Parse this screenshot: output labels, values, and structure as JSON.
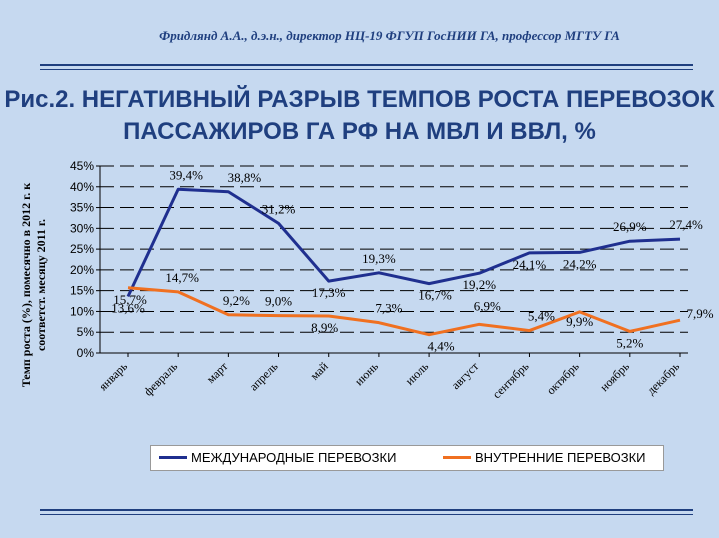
{
  "header": {
    "author": "Фридлянд А.А., д.э.н., директор  НЦ-19 ФГУП ГосНИИ ГА, профессор МГТУ ГА",
    "title_line1": "Рис.2. НЕГАТИВНЫЙ РАЗРЫВ ТЕМПОВ РОСТА ПЕРЕВОЗОК",
    "title_line2": "ПАССАЖИРОВ ГА РФ НА МВЛ И ВВЛ, %"
  },
  "colors": {
    "international": "#1f2f8f",
    "domestic": "#f07020",
    "background": "#c6d9f0"
  },
  "chart_data": {
    "type": "line",
    "ylabel_line1": "Темп роста (%), помесячно в 2012 г. к",
    "ylabel_line2": "соответст. месяцу 2011 г.",
    "ylim": [
      0,
      45
    ],
    "yticks": [
      "0%",
      "5%",
      "10%",
      "15%",
      "20%",
      "25%",
      "30%",
      "35%",
      "40%",
      "45%"
    ],
    "grid": true,
    "legend_position": "bottom",
    "categories": [
      "январь",
      "февраль",
      "март",
      "апрель",
      "май",
      "июнь",
      "июль",
      "август",
      "сентябрь",
      "октябрь",
      "ноябрь",
      "декабрь"
    ],
    "series": [
      {
        "name": "МЕЖДУНАРОДНЫЕ ПЕРЕВОЗКИ",
        "values": [
          13.6,
          39.4,
          38.8,
          31.2,
          17.3,
          19.3,
          16.7,
          19.2,
          24.1,
          24.2,
          26.9,
          27.4
        ],
        "labels": [
          "13,6%",
          "39,4%",
          "38,8%",
          "31,2%",
          "17,3%",
          "19,3%",
          "16,7%",
          "19,2%",
          "24,1%",
          "24,2%",
          "26,9%",
          "27,4%"
        ]
      },
      {
        "name": "ВНУТРЕННИЕ ПЕРЕВОЗКИ",
        "values": [
          15.7,
          14.7,
          9.2,
          9.0,
          8.9,
          7.3,
          4.4,
          6.9,
          5.4,
          9.9,
          5.2,
          7.9
        ],
        "labels": [
          "15,7%",
          "14,7%",
          "9,2%",
          "9,0%",
          "8,9%",
          "7,3%",
          "4,4%",
          "6,9%",
          "5,4%",
          "9,9%",
          "5,2%",
          "7,9%"
        ]
      }
    ]
  }
}
